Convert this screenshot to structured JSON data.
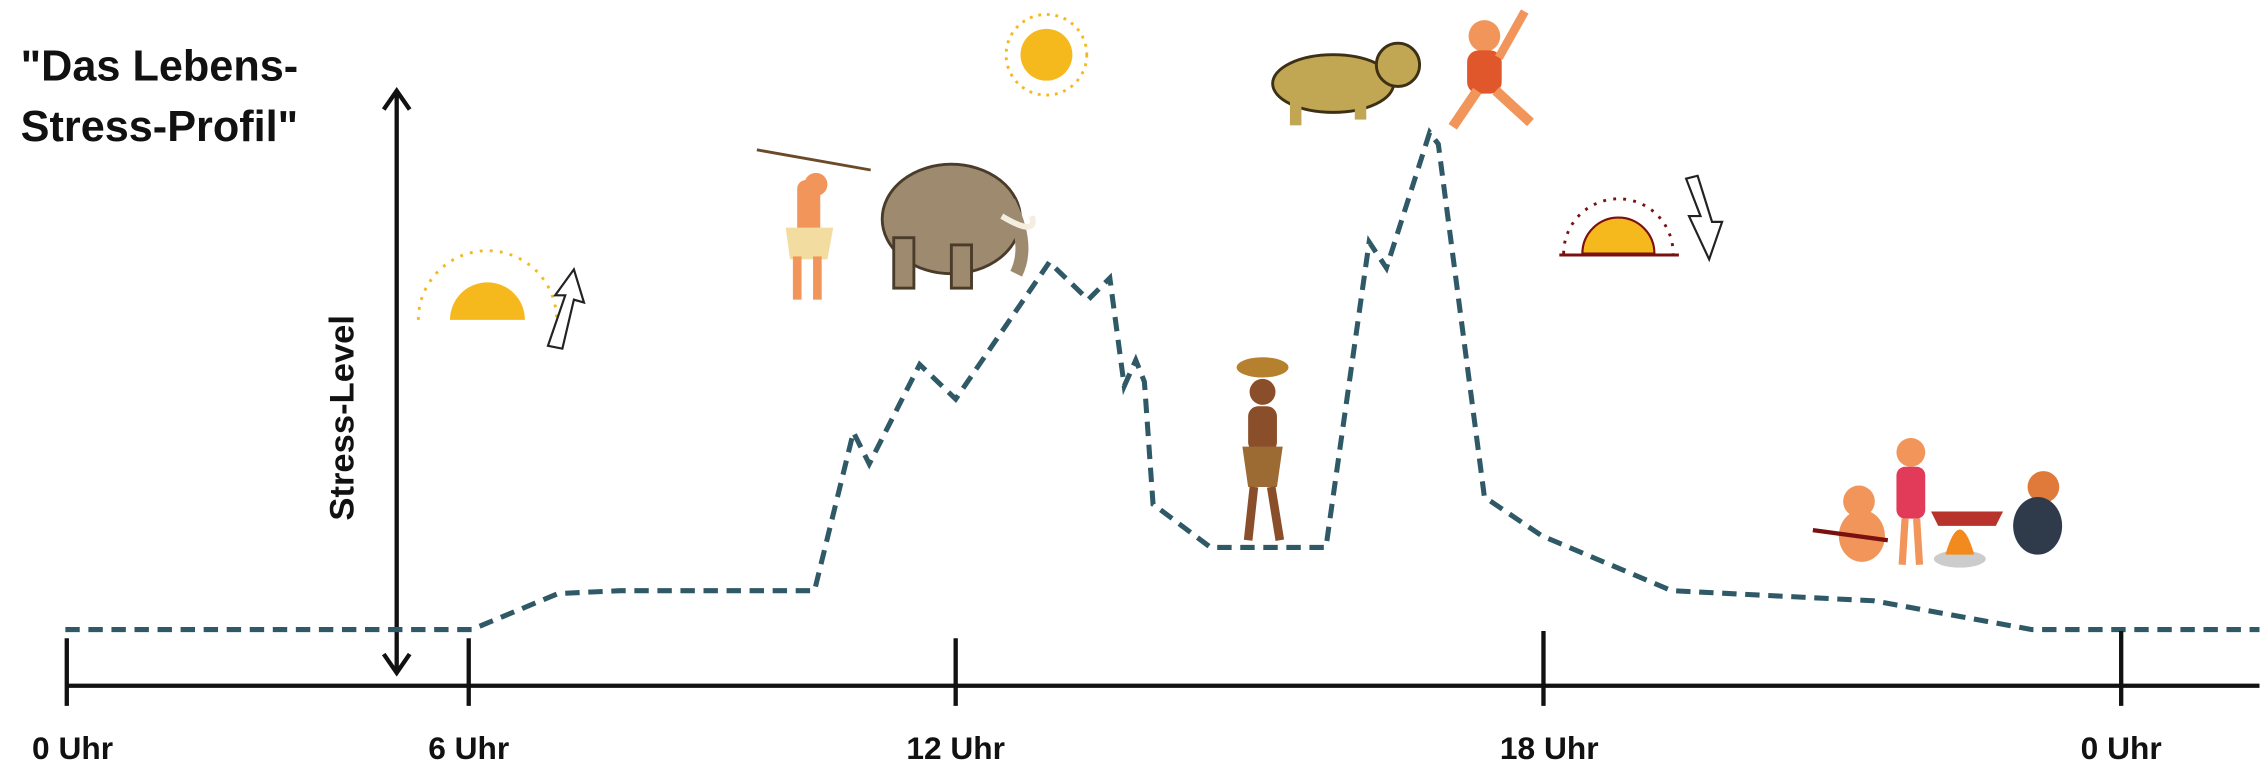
{
  "title": {
    "lines": [
      "\"Das Lebens-",
      "Stress-Profil\""
    ]
  },
  "y_axis_label": "Stress-Level",
  "x_axis_labels": [
    "0 Uhr",
    "6 Uhr",
    "12 Uhr",
    "18 Uhr",
    "0 Uhr"
  ]
}
